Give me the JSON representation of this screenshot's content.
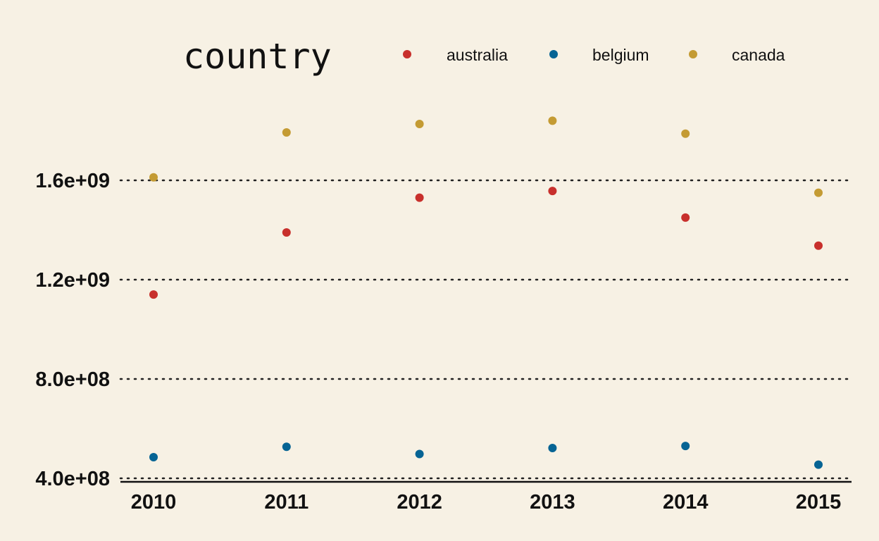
{
  "chart_data": {
    "type": "scatter",
    "background": "#f7f1e4",
    "legend": {
      "title": "country",
      "placement": "top"
    },
    "x": [
      2010,
      2011,
      2012,
      2013,
      2014,
      2015
    ],
    "x_ticks": [
      "2010",
      "2011",
      "2012",
      "2013",
      "2014",
      "2015"
    ],
    "y_ticks": [
      400000000,
      800000000,
      1200000000,
      1600000000
    ],
    "y_tick_labels": [
      "4.0e+08",
      "8.0e+08",
      "1.2e+09",
      "1.6e+09"
    ],
    "ylim": [
      390000000,
      1900000000
    ],
    "grid": "horizontal-dotted",
    "series": [
      {
        "name": "australia",
        "color": "#c8302c",
        "values": [
          1140000000,
          1390000000,
          1530000000,
          1557000000,
          1450000000,
          1337000000
        ]
      },
      {
        "name": "belgium",
        "color": "#066494",
        "values": [
          485000000,
          527000000,
          498000000,
          522000000,
          530000000,
          455000000
        ]
      },
      {
        "name": "canada",
        "color": "#c49b33",
        "values": [
          1612000000,
          1793000000,
          1827000000,
          1840000000,
          1788000000,
          1550000000
        ]
      }
    ]
  }
}
